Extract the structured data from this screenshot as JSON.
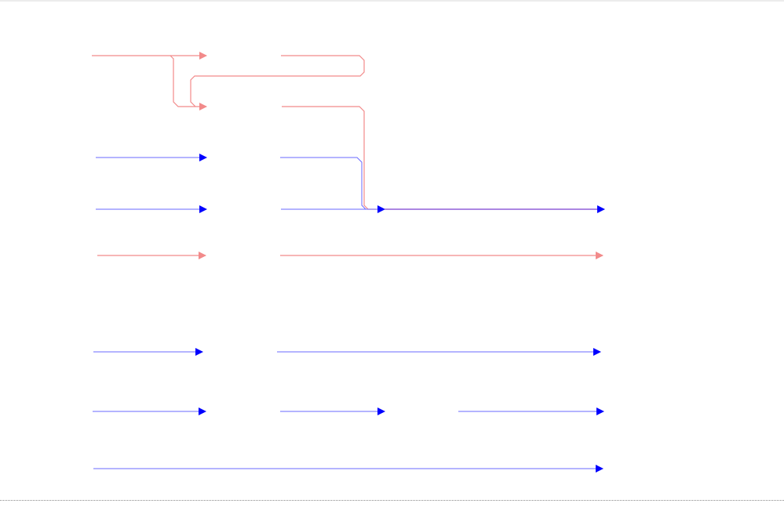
{
  "colors": {
    "red_connector": "#f28a8a",
    "blue_connector": "#6a6aff",
    "blue_arrowhead": "#0000ff",
    "merged_connector": "#7a3fd0",
    "page_top_border": "#ececec",
    "page_break": "#888888"
  },
  "icons": [
    "arrowhead-icon"
  ]
}
